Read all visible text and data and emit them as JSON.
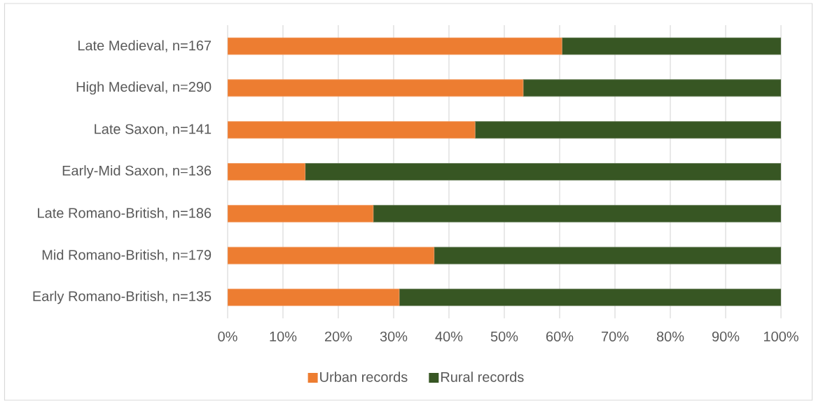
{
  "chart_data": {
    "type": "bar",
    "orientation": "horizontal",
    "stacked": true,
    "categories": [
      "Late Medieval, n=167",
      "High Medieval, n=290",
      "Late Saxon, n=141",
      "Early-Mid Saxon, n=136",
      "Late Romano-British, n=186",
      "Mid Romano-British, n=179",
      "Early Romano-British, n=135"
    ],
    "series": [
      {
        "name": "Urban records",
        "color": "#ed7d31",
        "values": [
          60.4,
          53.4,
          44.7,
          14.0,
          26.3,
          37.3,
          31.0
        ]
      },
      {
        "name": "Rural records",
        "color": "#375623",
        "values": [
          39.6,
          46.6,
          55.3,
          86.0,
          73.7,
          62.7,
          69.0
        ]
      }
    ],
    "xlim": [
      0,
      100
    ],
    "xticks": [
      {
        "value": 0,
        "label": "0%"
      },
      {
        "value": 10,
        "label": "10%"
      },
      {
        "value": 20,
        "label": "20%"
      },
      {
        "value": 30,
        "label": "30%"
      },
      {
        "value": 40,
        "label": "40%"
      },
      {
        "value": 50,
        "label": "50%"
      },
      {
        "value": 60,
        "label": "60%"
      },
      {
        "value": 70,
        "label": "70%"
      },
      {
        "value": 80,
        "label": "80%"
      },
      {
        "value": 90,
        "label": "90%"
      },
      {
        "value": 100,
        "label": "100%"
      }
    ],
    "grid": "x",
    "legend": "bottom"
  }
}
